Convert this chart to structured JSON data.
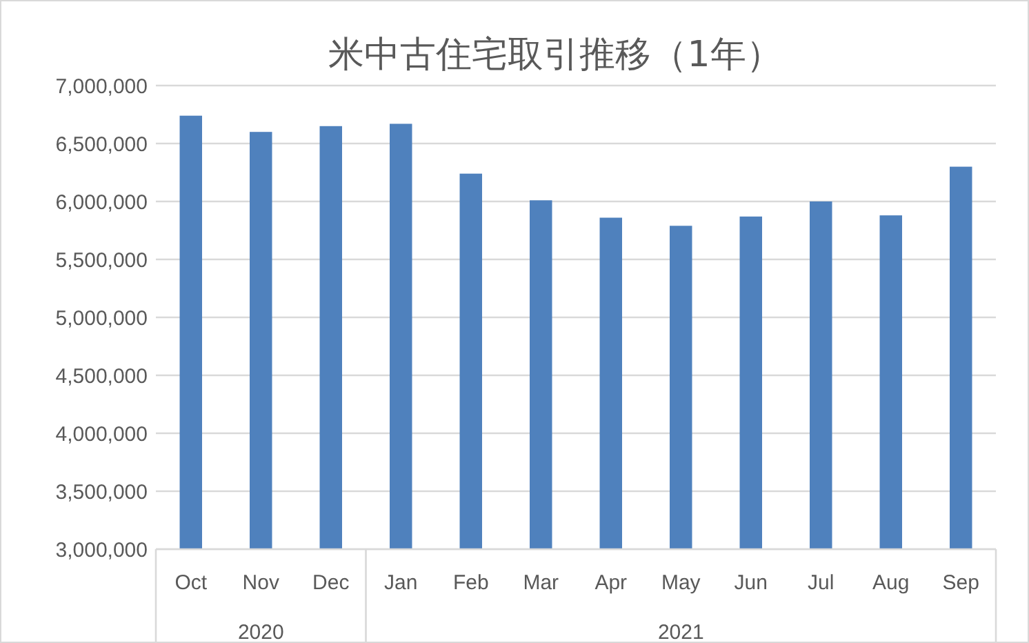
{
  "chart_data": {
    "type": "bar",
    "title": "米中古住宅取引推移（1年）",
    "categories": [
      "Oct",
      "Nov",
      "Dec",
      "Jan",
      "Feb",
      "Mar",
      "Apr",
      "May",
      "Jun",
      "Jul",
      "Aug",
      "Sep"
    ],
    "values": [
      6740000,
      6600000,
      6650000,
      6670000,
      6240000,
      6010000,
      5860000,
      5790000,
      5870000,
      6000000,
      5880000,
      6300000
    ],
    "color": "#4f81bd",
    "ylim": [
      3000000,
      7000000
    ],
    "yticks": [
      {
        "value": 3000000,
        "label": "3,000,000"
      },
      {
        "value": 3500000,
        "label": "3,500,000"
      },
      {
        "value": 4000000,
        "label": "4,000,000"
      },
      {
        "value": 4500000,
        "label": "4,500,000"
      },
      {
        "value": 5000000,
        "label": "5,000,000"
      },
      {
        "value": 5500000,
        "label": "5,500,000"
      },
      {
        "value": 6000000,
        "label": "6,000,000"
      },
      {
        "value": 6500000,
        "label": "6,500,000"
      },
      {
        "value": 7000000,
        "label": "7,000,000"
      }
    ],
    "grid": "y",
    "annotations": [
      "2020",
      "2021"
    ]
  }
}
